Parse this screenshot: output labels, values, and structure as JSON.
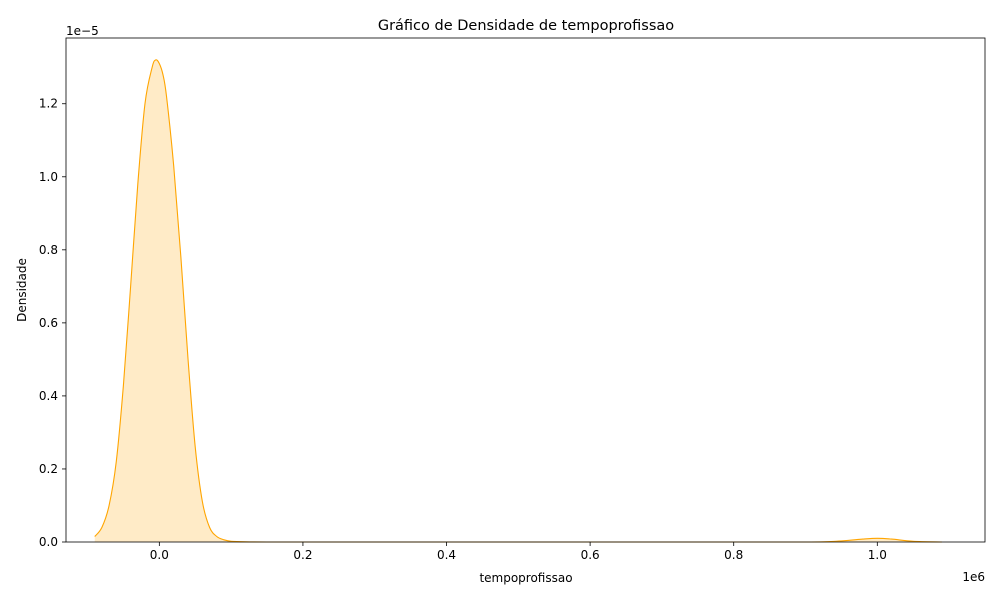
{
  "chart_data": {
    "type": "area",
    "title": "Gráfico de Densidade de tempoprofissao",
    "xlabel": "tempoprofissao",
    "ylabel": "Densidade",
    "x_offset_label": "1e6",
    "y_offset_label": "1e−5",
    "x_scale": 1000000,
    "y_scale": 1e-05,
    "xlim": [
      -0.13,
      1.15
    ],
    "ylim": [
      0,
      1.38
    ],
    "x_ticks": [
      0.0,
      0.2,
      0.4,
      0.6,
      0.8,
      1.0
    ],
    "x_tick_labels": [
      "0.0",
      "0.2",
      "0.4",
      "0.6",
      "0.8",
      "1.0"
    ],
    "y_ticks": [
      0.0,
      0.2,
      0.4,
      0.6,
      0.8,
      1.0,
      1.2
    ],
    "y_tick_labels": [
      "0.0",
      "0.2",
      "0.4",
      "0.6",
      "0.8",
      "1.0",
      "1.2"
    ],
    "grid": false,
    "legend": "none",
    "colors": {
      "line": "#ffa500",
      "fill": "#ffa500",
      "fill_opacity": 0.22
    },
    "series": [
      {
        "x": [
          -0.09,
          -0.08,
          -0.07,
          -0.06,
          -0.05,
          -0.04,
          -0.03,
          -0.02,
          -0.01,
          -0.005,
          0.0,
          0.005,
          0.01,
          0.02,
          0.03,
          0.04,
          0.05,
          0.06,
          0.07,
          0.08,
          0.09,
          0.1,
          0.12,
          0.15,
          0.2,
          0.3,
          0.5,
          0.7,
          0.9,
          0.95,
          0.98,
          1.0,
          1.02,
          1.05,
          1.09
        ],
        "y": [
          0.015,
          0.04,
          0.1,
          0.22,
          0.43,
          0.7,
          0.98,
          1.2,
          1.3,
          1.32,
          1.31,
          1.28,
          1.22,
          1.03,
          0.78,
          0.5,
          0.26,
          0.11,
          0.04,
          0.015,
          0.006,
          0.002,
          0.0005,
          0.0,
          0.0,
          0.0,
          0.0,
          0.0,
          0.0,
          0.003,
          0.008,
          0.01,
          0.008,
          0.002,
          0.0
        ]
      }
    ]
  }
}
